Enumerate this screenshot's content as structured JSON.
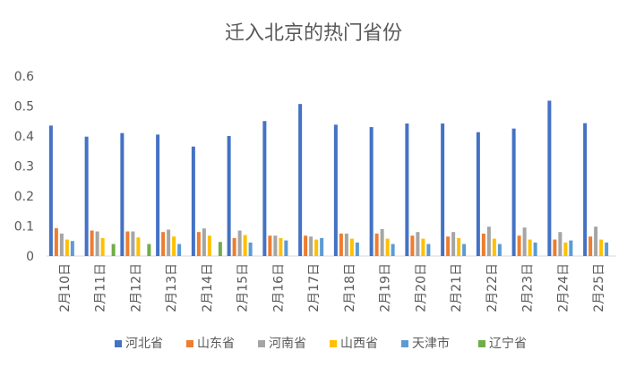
{
  "chart_data": {
    "type": "bar",
    "title": "迁入北京的热门省份",
    "xlabel": "",
    "ylabel": "",
    "ylim": [
      0,
      0.6
    ],
    "yticks": [
      "0",
      "0.1",
      "0.2",
      "0.3",
      "0.4",
      "0.5",
      "0.6"
    ],
    "grid": false,
    "legend_position": "bottom",
    "categories": [
      "2月10日",
      "2月11日",
      "2月12日",
      "2月13日",
      "2月14日",
      "2月15日",
      "2月16日",
      "2月17日",
      "2月18日",
      "2月19日",
      "2月20日",
      "2月21日",
      "2月22日",
      "2月23日",
      "2月24日",
      "2月25日"
    ],
    "series": [
      {
        "name": "河北省",
        "color": "#4472C4",
        "values": [
          0.435,
          0.398,
          0.41,
          0.405,
          0.365,
          0.4,
          0.45,
          0.507,
          0.438,
          0.43,
          0.442,
          0.442,
          0.413,
          0.425,
          0.518,
          0.443
        ]
      },
      {
        "name": "山东省",
        "color": "#ED7D31",
        "values": [
          0.093,
          0.085,
          0.082,
          0.08,
          0.08,
          0.06,
          0.068,
          0.068,
          0.075,
          0.075,
          0.068,
          0.065,
          0.075,
          0.068,
          0.055,
          0.065
        ]
      },
      {
        "name": "河南省",
        "color": "#A5A5A5",
        "values": [
          0.075,
          0.082,
          0.082,
          0.088,
          0.092,
          0.085,
          0.068,
          0.065,
          0.075,
          0.09,
          0.08,
          0.08,
          0.098,
          0.095,
          0.08,
          0.098
        ]
      },
      {
        "name": "山西省",
        "color": "#FFC000",
        "values": [
          0.055,
          0.06,
          0.062,
          0.065,
          0.068,
          0.07,
          0.06,
          0.055,
          0.058,
          0.058,
          0.058,
          0.06,
          0.058,
          0.055,
          0.045,
          0.055
        ]
      },
      {
        "name": "天津市",
        "color": "#5B9BD5",
        "values": [
          0.05,
          null,
          null,
          0.04,
          null,
          0.045,
          0.052,
          0.06,
          0.045,
          0.04,
          0.04,
          0.04,
          0.04,
          0.045,
          0.052,
          0.045
        ]
      },
      {
        "name": "辽宁省",
        "color": "#70AD47",
        "values": [
          null,
          0.04,
          0.04,
          null,
          0.047,
          null,
          null,
          null,
          null,
          null,
          null,
          null,
          null,
          null,
          null,
          null
        ]
      }
    ]
  }
}
